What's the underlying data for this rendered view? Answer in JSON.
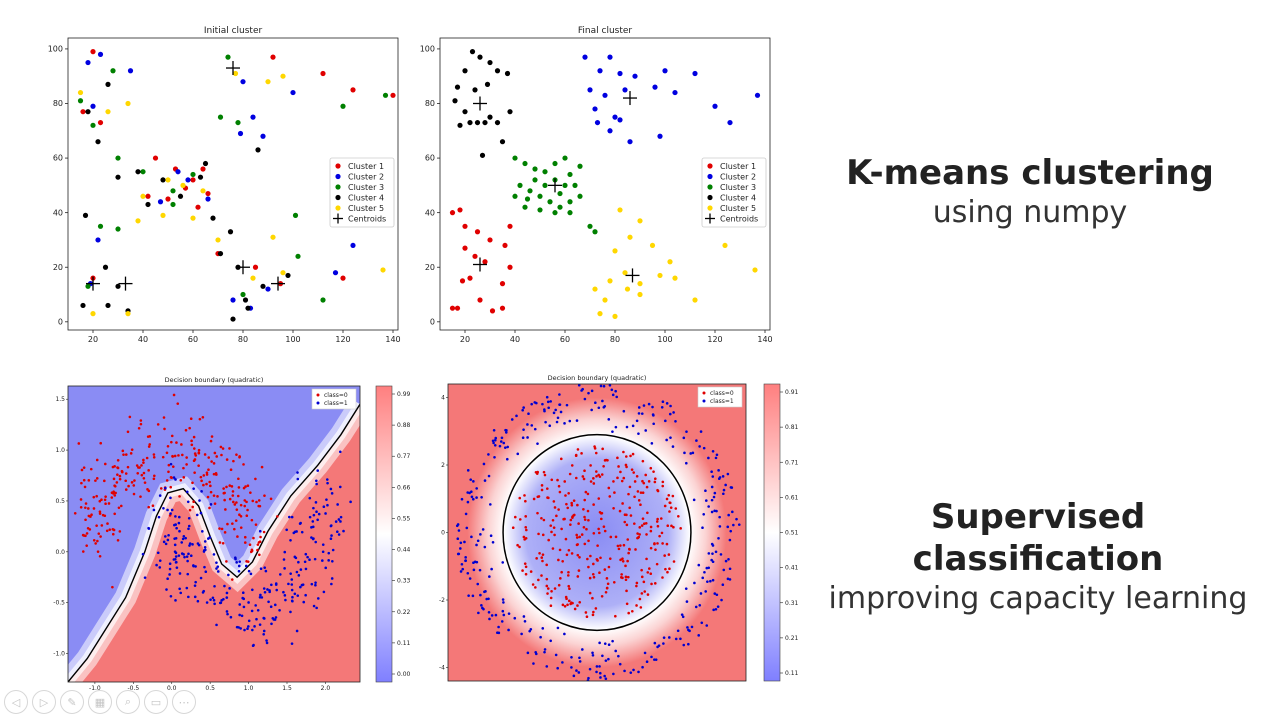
{
  "slide": {
    "kmeans_heading": "K-means clustering",
    "kmeans_sub": "using numpy",
    "supervised_heading": "Supervised classification",
    "supervised_sub": "improving capacity learning"
  },
  "toolbar": {
    "icons": [
      "prev-icon",
      "next-icon",
      "pen-icon",
      "slides-icon",
      "zoom-icon",
      "subtitle-icon",
      "more-icon"
    ],
    "glyphs": [
      "◁",
      "▷",
      "✎",
      "▦",
      "⌕",
      "▭",
      "⋯"
    ]
  },
  "chart_data": [
    {
      "type": "scatter",
      "title": "Initial cluster",
      "xlim": [
        10,
        142
      ],
      "ylim": [
        -3,
        104
      ],
      "xticks": [
        20,
        40,
        60,
        80,
        100,
        120,
        140
      ],
      "yticks": [
        0,
        20,
        40,
        60,
        80,
        100
      ],
      "legend_position": "center-right",
      "series": [
        {
          "name": "Cluster 1",
          "color": "#e00000",
          "points": [
            [
              20,
              99
            ],
            [
              16,
              77
            ],
            [
              23,
              73
            ],
            [
              45,
              60
            ],
            [
              53,
              56
            ],
            [
              60,
              52
            ],
            [
              66,
              47
            ],
            [
              92,
              97
            ],
            [
              112,
              91
            ],
            [
              124,
              85
            ],
            [
              140,
              83
            ],
            [
              50,
              45
            ],
            [
              62,
              42
            ],
            [
              70,
              25
            ],
            [
              85,
              20
            ],
            [
              120,
              16
            ],
            [
              95,
              14
            ],
            [
              20,
              16
            ],
            [
              42,
              46
            ],
            [
              57,
              49
            ],
            [
              64,
              56
            ]
          ]
        },
        {
          "name": "Cluster 2",
          "color": "#0000e0",
          "points": [
            [
              18,
              95
            ],
            [
              23,
              98
            ],
            [
              35,
              92
            ],
            [
              20,
              79
            ],
            [
              58,
              52
            ],
            [
              47,
              44
            ],
            [
              66,
              45
            ],
            [
              80,
              88
            ],
            [
              84,
              75
            ],
            [
              79,
              69
            ],
            [
              88,
              68
            ],
            [
              100,
              84
            ],
            [
              117,
              18
            ],
            [
              19,
              14
            ],
            [
              22,
              30
            ],
            [
              76,
              8
            ],
            [
              83,
              5
            ],
            [
              90,
              12
            ],
            [
              124,
              28
            ],
            [
              54,
              55
            ]
          ]
        },
        {
          "name": "Cluster 3",
          "color": "#008000",
          "points": [
            [
              28,
              92
            ],
            [
              15,
              81
            ],
            [
              20,
              72
            ],
            [
              30,
              60
            ],
            [
              40,
              55
            ],
            [
              52,
              48
            ],
            [
              60,
              54
            ],
            [
              74,
              97
            ],
            [
              71,
              75
            ],
            [
              78,
              73
            ],
            [
              101,
              39
            ],
            [
              120,
              79
            ],
            [
              137,
              83
            ],
            [
              18,
              13
            ],
            [
              30,
              34
            ],
            [
              23,
              35
            ],
            [
              80,
              10
            ],
            [
              112,
              8
            ],
            [
              102,
              24
            ],
            [
              52,
              43
            ]
          ]
        },
        {
          "name": "Cluster 4",
          "color": "#000000",
          "points": [
            [
              26,
              87
            ],
            [
              18,
              77
            ],
            [
              22,
              66
            ],
            [
              30,
              53
            ],
            [
              38,
              55
            ],
            [
              42,
              43
            ],
            [
              48,
              52
            ],
            [
              55,
              46
            ],
            [
              63,
              53
            ],
            [
              65,
              58
            ],
            [
              68,
              38
            ],
            [
              71,
              25
            ],
            [
              75,
              33
            ],
            [
              78,
              20
            ],
            [
              82,
              5
            ],
            [
              88,
              13
            ],
            [
              98,
              17
            ],
            [
              17,
              39
            ],
            [
              25,
              20
            ],
            [
              30,
              13
            ],
            [
              34,
              4
            ],
            [
              26,
              6
            ],
            [
              16,
              6
            ],
            [
              86,
              63
            ],
            [
              76,
              1
            ],
            [
              81,
              8
            ]
          ]
        },
        {
          "name": "Cluster 5",
          "color": "#ffd700",
          "points": [
            [
              15,
              84
            ],
            [
              26,
              77
            ],
            [
              34,
              80
            ],
            [
              38,
              37
            ],
            [
              40,
              46
            ],
            [
              50,
              52
            ],
            [
              56,
              50
            ],
            [
              64,
              48
            ],
            [
              77,
              91
            ],
            [
              90,
              88
            ],
            [
              96,
              90
            ],
            [
              92,
              31
            ],
            [
              136,
              19
            ],
            [
              20,
              3
            ],
            [
              34,
              3
            ],
            [
              70,
              30
            ],
            [
              84,
              16
            ],
            [
              96,
              18
            ],
            [
              60,
              38
            ],
            [
              48,
              39
            ]
          ]
        },
        {
          "name": "Centroids",
          "color": "#000000",
          "marker": "+",
          "points": [
            [
              76,
              93
            ],
            [
              20,
              14
            ],
            [
              33,
              14
            ],
            [
              80,
              20
            ],
            [
              94,
              14
            ]
          ]
        }
      ]
    },
    {
      "type": "scatter",
      "title": "Final cluster",
      "xlim": [
        10,
        142
      ],
      "ylim": [
        -3,
        104
      ],
      "xticks": [
        20,
        40,
        60,
        80,
        100,
        120,
        140
      ],
      "yticks": [
        0,
        20,
        40,
        60,
        80,
        100
      ],
      "legend_position": "center-right",
      "series": [
        {
          "name": "Cluster 1",
          "color": "#e00000",
          "points": [
            [
              15,
              40
            ],
            [
              18,
              41
            ],
            [
              20,
              35
            ],
            [
              25,
              33
            ],
            [
              30,
              30
            ],
            [
              38,
              35
            ],
            [
              36,
              28
            ],
            [
              19,
              15
            ],
            [
              22,
              16
            ],
            [
              26,
              8
            ],
            [
              31,
              4
            ],
            [
              35,
              5
            ],
            [
              17,
              5
            ],
            [
              15,
              5
            ],
            [
              24,
              24
            ],
            [
              28,
              22
            ],
            [
              20,
              27
            ],
            [
              35,
              14
            ],
            [
              38,
              20
            ]
          ]
        },
        {
          "name": "Cluster 2",
          "color": "#0000e0",
          "points": [
            [
              68,
              97
            ],
            [
              78,
              97
            ],
            [
              74,
              92
            ],
            [
              82,
              91
            ],
            [
              88,
              90
            ],
            [
              100,
              92
            ],
            [
              112,
              91
            ],
            [
              70,
              85
            ],
            [
              76,
              83
            ],
            [
              84,
              85
            ],
            [
              96,
              86
            ],
            [
              104,
              84
            ],
            [
              80,
              75
            ],
            [
              73,
              73
            ],
            [
              86,
              66
            ],
            [
              98,
              68
            ],
            [
              120,
              79
            ],
            [
              137,
              83
            ],
            [
              126,
              73
            ],
            [
              72,
              78
            ],
            [
              78,
              70
            ],
            [
              82,
              74
            ]
          ]
        },
        {
          "name": "Cluster 3",
          "color": "#008000",
          "points": [
            [
              40,
              60
            ],
            [
              44,
              58
            ],
            [
              48,
              56
            ],
            [
              52,
              55
            ],
            [
              56,
              58
            ],
            [
              60,
              60
            ],
            [
              62,
              54
            ],
            [
              66,
              57
            ],
            [
              42,
              50
            ],
            [
              46,
              48
            ],
            [
              50,
              46
            ],
            [
              54,
              44
            ],
            [
              58,
              42
            ],
            [
              62,
              44
            ],
            [
              66,
              46
            ],
            [
              44,
              42
            ],
            [
              50,
              41
            ],
            [
              56,
              40
            ],
            [
              62,
              40
            ],
            [
              48,
              52
            ],
            [
              52,
              50
            ],
            [
              56,
              52
            ],
            [
              60,
              50
            ],
            [
              64,
              50
            ],
            [
              40,
              46
            ],
            [
              45,
              45
            ],
            [
              58,
              47
            ],
            [
              70,
              35
            ],
            [
              72,
              33
            ]
          ]
        },
        {
          "name": "Cluster 4",
          "color": "#000000",
          "points": [
            [
              23,
              99
            ],
            [
              26,
              97
            ],
            [
              30,
              95
            ],
            [
              20,
              92
            ],
            [
              33,
              92
            ],
            [
              17,
              86
            ],
            [
              24,
              85
            ],
            [
              29,
              87
            ],
            [
              37,
              91
            ],
            [
              16,
              81
            ],
            [
              20,
              77
            ],
            [
              25,
              73
            ],
            [
              30,
              75
            ],
            [
              38,
              77
            ],
            [
              22,
              73
            ],
            [
              28,
              73
            ],
            [
              33,
              73
            ],
            [
              18,
              72
            ],
            [
              27,
              61
            ],
            [
              35,
              66
            ]
          ]
        },
        {
          "name": "Cluster 5",
          "color": "#ffd700",
          "points": [
            [
              82,
              41
            ],
            [
              86,
              31
            ],
            [
              90,
              37
            ],
            [
              95,
              28
            ],
            [
              102,
              22
            ],
            [
              80,
              26
            ],
            [
              84,
              18
            ],
            [
              90,
              14
            ],
            [
              98,
              17
            ],
            [
              104,
              16
            ],
            [
              112,
              8
            ],
            [
              124,
              28
            ],
            [
              136,
              19
            ],
            [
              72,
              12
            ],
            [
              76,
              8
            ],
            [
              80,
              2
            ],
            [
              74,
              3
            ],
            [
              85,
              12
            ],
            [
              90,
              10
            ],
            [
              78,
              15
            ]
          ]
        },
        {
          "name": "Centroids",
          "color": "#000000",
          "marker": "+",
          "points": [
            [
              26,
              80
            ],
            [
              86,
              82
            ],
            [
              56,
              50
            ],
            [
              26,
              21
            ],
            [
              87,
              17
            ]
          ]
        }
      ]
    },
    {
      "type": "scatter",
      "title": "Decision boundary (quadratic)",
      "xlim": [
        -1.35,
        2.45
      ],
      "ylim": [
        -1.28,
        1.63
      ],
      "xticks": [
        -1.0,
        -0.5,
        0.0,
        0.5,
        1.0,
        1.5,
        2.0
      ],
      "yticks": [
        -1.0,
        -0.5,
        0.0,
        0.5,
        1.0,
        1.5
      ],
      "colorbar_ticks": [
        "0.99",
        "0.88",
        "0.77",
        "0.66",
        "0.55",
        "0.44",
        "0.33",
        "0.22",
        "0.11",
        "0.00"
      ],
      "legend_position": "top-right",
      "series": [
        {
          "name": "class=0",
          "color": "#e00000",
          "description": "upper moon",
          "center": [
            0.0,
            0.0
          ],
          "radius": 1.0,
          "angle_range": [
            0,
            180
          ],
          "noise": 0.22,
          "count": 300
        },
        {
          "name": "class=1",
          "color": "#0000d0",
          "description": "lower moon",
          "center": [
            1.0,
            0.5
          ],
          "radius": 1.0,
          "angle_range": [
            180,
            360
          ],
          "noise": 0.22,
          "count": 300
        }
      ]
    },
    {
      "type": "scatter",
      "title": "Decision boundary (quadratic)",
      "xlim": [
        -4.6,
        4.6
      ],
      "ylim": [
        -4.4,
        4.4
      ],
      "xticks": [],
      "yticks": [
        -4,
        -2,
        0,
        2,
        4
      ],
      "colorbar_ticks": [
        "0.91",
        "0.81",
        "0.71",
        "0.61",
        "0.51",
        "0.41",
        "0.31",
        "0.21",
        "0.11"
      ],
      "legend_position": "top-right",
      "boundary_circle_radius": 2.9,
      "series": [
        {
          "name": "class=0",
          "color": "#e00000",
          "description": "inner disc",
          "radius_range": [
            0,
            2.6
          ],
          "count": 350
        },
        {
          "name": "class=1",
          "color": "#0000d0",
          "description": "outer ring",
          "radius_range": [
            3.0,
            4.4
          ],
          "count": 350
        }
      ]
    }
  ]
}
